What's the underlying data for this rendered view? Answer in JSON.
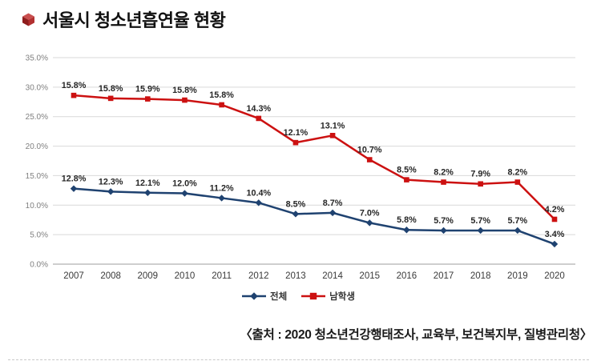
{
  "title": "서울시 청소년흡연율 현황",
  "source": "〈출처 : 2020 청소년건강행태조사, 교육부, 보건복지부, 질병관리청〉",
  "colors": {
    "total_line": "#1f4270",
    "male_line": "#cc1111",
    "grid": "#d9d9d9",
    "axis": "#9e9e9e",
    "data_label": "#262626",
    "tick_label": "#7f7f7f",
    "year_label": "#3a3a3a"
  },
  "chart_data": {
    "type": "line",
    "stacked": true,
    "title": "서울시 청소년흡연율 현황",
    "xlabel": "",
    "ylabel": "",
    "grid": true,
    "legend_position": "bottom",
    "categories": [
      "2007",
      "2008",
      "2009",
      "2010",
      "2011",
      "2012",
      "2013",
      "2014",
      "2015",
      "2016",
      "2017",
      "2018",
      "2019",
      "2020"
    ],
    "series": [
      {
        "name": "전체",
        "color": "#1f4270",
        "marker": "diamond",
        "values": [
          12.8,
          12.3,
          12.1,
          12.0,
          11.2,
          10.4,
          8.5,
          8.7,
          7.0,
          5.8,
          5.7,
          5.7,
          5.7,
          3.4
        ]
      },
      {
        "name": "남학생",
        "color": "#cc1111",
        "marker": "square",
        "values": [
          15.8,
          15.8,
          15.9,
          15.8,
          15.8,
          14.3,
          12.1,
          13.1,
          10.7,
          8.5,
          8.2,
          7.9,
          8.2,
          4.2
        ]
      }
    ],
    "ylim": [
      0,
      35
    ],
    "ytick_step": 5,
    "ytick_labels": [
      "0.0%",
      "5.0%",
      "10.0%",
      "15.0%",
      "20.0%",
      "25.0%",
      "30.0%",
      "35.0%"
    ],
    "data_label_format": "0.0%"
  }
}
